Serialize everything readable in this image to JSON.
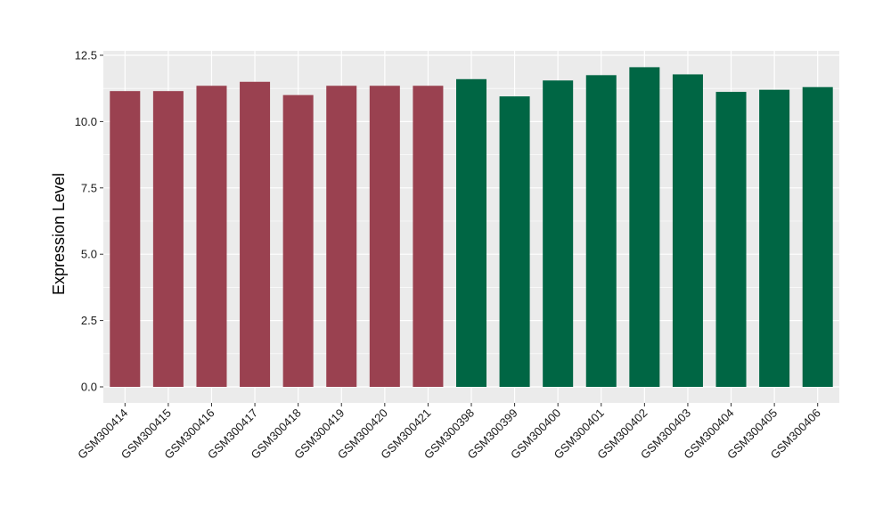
{
  "chart_data": {
    "type": "bar",
    "title": "",
    "xlabel": "",
    "ylabel": "Expression Level",
    "ylim": [
      0,
      12.5
    ],
    "yticks": [
      "0.0",
      "2.5",
      "5.0",
      "7.5",
      "10.0",
      "12.5"
    ],
    "grid": true,
    "legend": "none",
    "categories": [
      "GSM300414",
      "GSM300415",
      "GSM300416",
      "GSM300417",
      "GSM300418",
      "GSM300419",
      "GSM300420",
      "GSM300421",
      "GSM300398",
      "GSM300399",
      "GSM300400",
      "GSM300401",
      "GSM300402",
      "GSM300403",
      "GSM300404",
      "GSM300405",
      "GSM300406"
    ],
    "values": [
      11.15,
      11.15,
      11.35,
      11.5,
      11.0,
      11.35,
      11.35,
      11.35,
      11.6,
      10.95,
      11.55,
      11.75,
      12.05,
      11.78,
      11.12,
      11.2,
      11.3
    ],
    "groups": [
      {
        "color": "#9a4150",
        "count": 8
      },
      {
        "color": "#006644",
        "count": 9
      }
    ]
  },
  "colors": {
    "panel_background": "#ebebeb",
    "gridline": "#ffffff"
  }
}
